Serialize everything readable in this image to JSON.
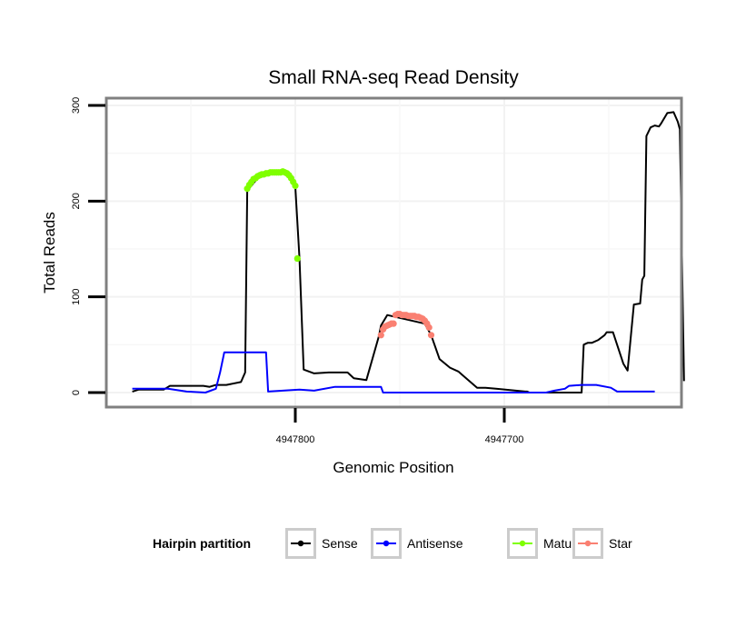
{
  "chart_data": {
    "type": "line",
    "title": "Small RNA-seq Read Density",
    "xlabel": "Genomic Position",
    "ylabel": "Total Reads",
    "x_reversed": true,
    "xlim": [
      4947890,
      4947615
    ],
    "ylim": [
      -12,
      310
    ],
    "x_ticks": [
      4947800,
      4947700
    ],
    "x_tick_labels": [
      "4947800",
      "4947700"
    ],
    "y_ticks": [
      0,
      100,
      200,
      300
    ],
    "y_tick_labels": [
      "0",
      "100",
      "200",
      "300"
    ],
    "grid": true,
    "legend": {
      "title": "Hairpin partition",
      "position": "bottom",
      "entries": [
        "Sense",
        "Antisense",
        "Mature",
        "Star"
      ]
    },
    "colors": {
      "Sense": "#000000",
      "Antisense": "#0000ff",
      "Mature": "#7fff00",
      "Star": "#fa8072"
    },
    "series": [
      {
        "name": "Sense",
        "style": "line",
        "x": [
          4947878,
          4947875,
          4947863,
          4947860,
          4947850,
          4947844,
          4947841,
          4947838,
          4947833,
          4947826,
          4947824,
          4947823,
          4947818,
          4947810,
          4947803,
          4947800,
          4947798,
          4947796,
          4947791,
          4947784,
          4947775,
          4947772,
          4947766,
          4947760,
          4947759,
          4947756,
          4947738,
          4947735,
          4947731,
          4947726,
          4947722,
          4947713,
          4947709,
          4947704,
          4947690,
          4947689,
          4947688,
          4947678,
          4947675,
          4947673,
          4947663,
          4947662,
          4947660,
          4947659,
          4947658,
          4947655,
          4947652,
          4947651,
          4947648,
          4947643,
          4947641,
          4947638,
          4947635,
          4947634,
          4947633,
          4947632,
          4947630,
          4947628,
          4947626,
          4947625,
          4947622,
          4947619,
          4947617,
          4947616,
          4947614
        ],
        "y": [
          1,
          3,
          3,
          7,
          7,
          7,
          6,
          8,
          8,
          11,
          21,
          211,
          224,
          230,
          230,
          215,
          140,
          24,
          20,
          21,
          21,
          15,
          13,
          59,
          70,
          81,
          72,
          60,
          35,
          26,
          22,
          5,
          5,
          4,
          1,
          1,
          0,
          0,
          0,
          0,
          0,
          50,
          52,
          52,
          52,
          55,
          60,
          63,
          63,
          30,
          23,
          92,
          93,
          118,
          122,
          268,
          277,
          279,
          278,
          281,
          292,
          293,
          283,
          275,
          12
        ]
      },
      {
        "name": "Antisense",
        "style": "line",
        "x": [
          4947878,
          4947861,
          4947852,
          4947843,
          4947838,
          4947836,
          4947834,
          4947814,
          4947813,
          4947798,
          4947791,
          4947781,
          4947759,
          4947758,
          4947680,
          4947676,
          4947671,
          4947669,
          4947663,
          4947656,
          4947649,
          4947646,
          4947628
        ],
        "y": [
          4,
          4,
          1,
          0,
          4,
          21,
          42,
          42,
          1,
          3,
          2,
          6,
          6,
          0,
          0,
          2,
          4,
          7,
          8,
          8,
          5,
          1,
          1
        ]
      },
      {
        "name": "Mature",
        "style": "points",
        "x": [
          4947823,
          4947822,
          4947821,
          4947820,
          4947819,
          4947818,
          4947817,
          4947816,
          4947815,
          4947814,
          4947813,
          4947812,
          4947811,
          4947810,
          4947809,
          4947808,
          4947807,
          4947806,
          4947805,
          4947804,
          4947803,
          4947802,
          4947801,
          4947800,
          4947799
        ],
        "y": [
          213,
          217,
          220,
          223,
          224,
          226,
          227,
          228,
          228,
          229,
          229,
          230,
          230,
          230,
          230,
          230,
          230,
          231,
          230,
          229,
          227,
          224,
          220,
          216,
          140
        ]
      },
      {
        "name": "Star",
        "style": "points",
        "x": [
          4947759,
          4947758,
          4947757,
          4947756,
          4947755,
          4947754,
          4947753,
          4947752,
          4947751,
          4947750,
          4947749,
          4947748,
          4947747,
          4947746,
          4947745,
          4947744,
          4947743,
          4947742,
          4947741,
          4947740,
          4947739,
          4947738,
          4947737,
          4947736,
          4947735
        ],
        "y": [
          60,
          66,
          69,
          70,
          71,
          72,
          72,
          81,
          82,
          82,
          81,
          81,
          81,
          80,
          80,
          80,
          80,
          79,
          79,
          78,
          77,
          75,
          72,
          68,
          60
        ]
      }
    ]
  }
}
